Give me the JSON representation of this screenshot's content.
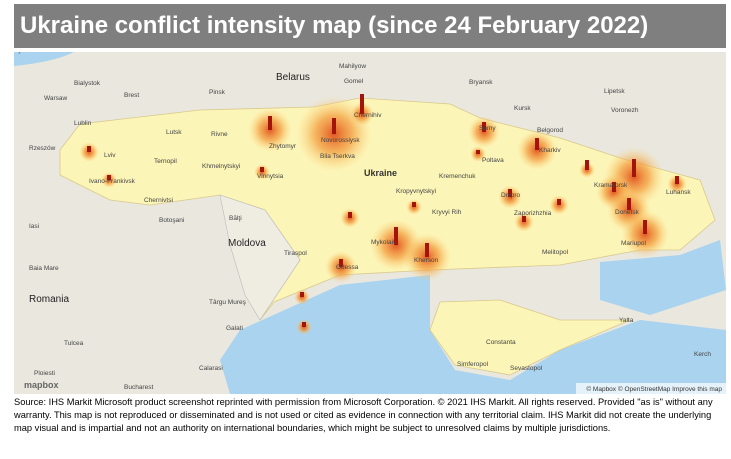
{
  "header": {
    "title": "Ukraine conflict intensity map (since 24 February 2022)"
  },
  "map": {
    "labels": [
      "Belarus",
      "Ukraine",
      "Moldova",
      "Romania",
      "Warsaw",
      "Lublin",
      "Rzeszów",
      "Bialystok",
      "Brest",
      "Pinsk",
      "Gomel",
      "Mahilyow",
      "Bryansk",
      "Kursk",
      "Lipetsk",
      "Voronezh",
      "Belgorod",
      "Lutsk",
      "Rivne",
      "Lviv",
      "Ternopil",
      "Khmelnytskyi",
      "Ivano-Frankivsk",
      "Chernivtsi",
      "Zhytomyr",
      "Bila Tserkva",
      "Vinnytsia",
      "Chernihiv",
      "Sumy",
      "Kharkiv",
      "Poltava",
      "Kremenchuk",
      "Kropyvnytskyi",
      "Kryvyi Rih",
      "Dnipro",
      "Zaporizhzhia",
      "Kramatorsk",
      "Luhansk",
      "Donetsk",
      "Mariupol",
      "Melitopol",
      "Mykolaiv",
      "Kherson",
      "Odessa",
      "Tiraspol",
      "Bălţi",
      "Botoşani",
      "Iasi",
      "Baia Mare",
      "Târgu Mureş",
      "Galati",
      "Tulcea",
      "Ploiesti",
      "Bucharest",
      "Calarasi",
      "Constanta",
      "Simferopol",
      "Sevastopol",
      "Yalta",
      "Kerch",
      "Novorossiysk",
      "Kyiv"
    ],
    "attribution": "© Mapbox © OpenStreetMap  Improve this map",
    "logo": "mapbox"
  },
  "footer": {
    "source": "Source: IHS Markit Microsoft product screenshot reprinted with permission from Microsoft Corporation. © 2021 IHS Markit. All rights reserved. Provided \"as is\" without any warranty. This map is not reproduced or disseminated and is not used or cited as evidence in connection with any territorial claim. IHS Markit did not create the underlying map visual and is impartial and not an authority on international boundaries, which might be subject to unresolved claims by multiple jurisdictions."
  }
}
